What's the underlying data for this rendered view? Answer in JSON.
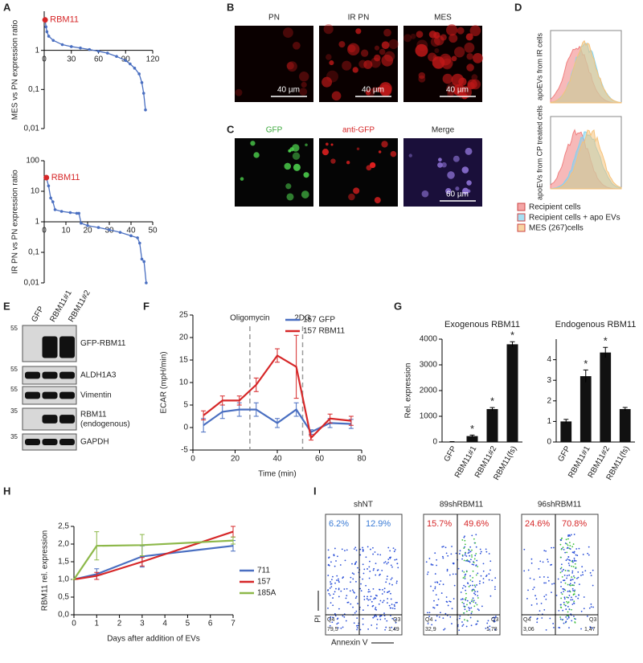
{
  "panel_labels": [
    "A",
    "B",
    "C",
    "D",
    "E",
    "F",
    "G",
    "H",
    "I"
  ],
  "chart_data": [
    {
      "type": "line",
      "ylabel": "MES vs PN expression ratio",
      "ylog": true,
      "markers": true,
      "x_axis_at": 1,
      "x": [
        1,
        2,
        3,
        5,
        10,
        20,
        30,
        40,
        50,
        60,
        70,
        80,
        90,
        95,
        100,
        105,
        108,
        110,
        112
      ],
      "series": [
        {
          "color": "#4a6fc1",
          "values": [
            6,
            4,
            3,
            2.3,
            1.8,
            1.4,
            1.25,
            1.15,
            1.05,
            0.95,
            0.85,
            0.7,
            0.55,
            0.45,
            0.35,
            0.25,
            0.15,
            0.08,
            0.03
          ]
        }
      ],
      "annotations": [
        {
          "text": "RBM11",
          "x": 1,
          "y": 6,
          "color": "#d62728"
        }
      ],
      "xlim": [
        0,
        120
      ],
      "xticks": [
        0,
        30,
        60,
        90,
        120
      ],
      "ylim": [
        0.01,
        10
      ],
      "yticks": [
        {
          "value": 0.01,
          "label": "0,01"
        },
        {
          "value": 0.1,
          "label": "0,1"
        },
        1
      ]
    },
    {
      "type": "line",
      "ylabel": "IR PN vs PN expression ratio",
      "ylog": true,
      "markers": true,
      "x_axis_at": 1,
      "x": [
        1,
        2,
        3,
        4,
        5,
        8,
        12,
        15,
        16,
        17,
        20,
        25,
        30,
        35,
        40,
        43,
        44,
        45,
        46,
        47
      ],
      "series": [
        {
          "color": "#4a6fc1",
          "values": [
            28,
            15,
            6,
            4.5,
            2.5,
            2.2,
            2,
            1.9,
            1.9,
            0.9,
            0.75,
            0.65,
            0.55,
            0.45,
            0.35,
            0.3,
            0.2,
            0.06,
            0.05,
            0.01
          ]
        }
      ],
      "annotations": [
        {
          "text": "RBM11",
          "x": 1,
          "y": 28,
          "color": "#d62728"
        }
      ],
      "xlim": [
        0,
        50
      ],
      "xticks": [
        0,
        10,
        20,
        30,
        40,
        50
      ],
      "ylim": [
        0.01,
        100
      ],
      "yticks": [
        {
          "value": 0.01,
          "label": "0,01"
        },
        {
          "value": 0.1,
          "label": "0,1"
        },
        1,
        10,
        100
      ]
    },
    {
      "type": "line",
      "ylabel": "ECAR (mpH/min)",
      "xlabel": "Time (min)",
      "legend": "upper right",
      "x": [
        5,
        14,
        22,
        30,
        40,
        49,
        56,
        65,
        75
      ],
      "series": [
        {
          "name": "157 GFP",
          "color": "#4a6fc1",
          "values": [
            0.5,
            3.5,
            4,
            4,
            1,
            4,
            -1,
            1,
            0.8
          ],
          "errors": [
            1.5,
            1.5,
            1.5,
            1.5,
            1,
            1.5,
            0.5,
            1,
            1
          ]
        },
        {
          "name": "157 RBM11",
          "color": "#d62728",
          "values": [
            2.7,
            6,
            6,
            9.5,
            16,
            13.5,
            -2.3,
            2,
            1.5
          ],
          "errors": [
            1,
            1,
            1,
            1.5,
            1.5,
            7,
            0.5,
            1,
            1
          ]
        }
      ],
      "vlines": [
        {
          "x": 27,
          "label": "Oligomycin"
        },
        {
          "x": 52,
          "label": "2DG"
        }
      ],
      "xlim": [
        0,
        80
      ],
      "xticks": [
        0,
        20,
        40,
        60,
        80
      ],
      "ylim": [
        -5,
        25
      ],
      "yticks": [
        -5,
        0,
        5,
        10,
        15,
        20,
        25
      ]
    },
    {
      "type": "bar",
      "title": "Exogenous RBM11",
      "ylabel": "Rel. expression",
      "color": "#111",
      "categories": [
        "GFP",
        "RBM11#1",
        "RBM11#2",
        "RBM11(fs)"
      ],
      "values": [
        5,
        230,
        1280,
        3800
      ],
      "errors": [
        10,
        40,
        60,
        100
      ],
      "significance": [
        null,
        "*",
        "*",
        "*"
      ],
      "ylim": [
        0,
        4000
      ],
      "yticks": [
        0,
        1000,
        2000,
        3000,
        4000
      ]
    },
    {
      "type": "bar",
      "title": "Endogenous RBM11",
      "color": "#111",
      "categories": [
        "GFP",
        "RBM11#1",
        "RBM11#2",
        "RBM11(fs)"
      ],
      "values": [
        1,
        3.2,
        4.35,
        1.6
      ],
      "errors": [
        0.1,
        0.3,
        0.25,
        0.08
      ],
      "significance": [
        null,
        "*",
        "*",
        null
      ],
      "ylim": [
        0,
        5
      ],
      "yticks": [
        0,
        1,
        2,
        3,
        4
      ]
    },
    {
      "type": "line",
      "ylabel": "RBM11 rel. expression",
      "xlabel": "Days after addition of EVs",
      "legend": "right",
      "x": [
        0,
        1,
        3,
        7
      ],
      "series": [
        {
          "name": "711",
          "color": "#4a6fc1",
          "values": [
            1,
            1.15,
            1.65,
            1.95
          ],
          "errors": [
            0,
            0.15,
            0.3,
            0.15
          ]
        },
        {
          "name": "157",
          "color": "#d62728",
          "values": [
            1,
            1.1,
            1.5,
            2.35
          ],
          "errors": [
            0,
            0.1,
            0.12,
            0.15
          ]
        },
        {
          "name": "185A",
          "color": "#8db84a",
          "values": [
            1,
            1.95,
            1.97,
            2.1
          ],
          "errors": [
            0,
            0.4,
            0.3,
            0.1
          ]
        }
      ],
      "xlim": [
        0,
        7
      ],
      "xticks": [
        0,
        1,
        2,
        3,
        4,
        5,
        6,
        7
      ],
      "ylim": [
        0,
        2.5
      ],
      "yticks": [
        {
          "value": 0,
          "label": "0,0"
        },
        {
          "value": 0.5,
          "label": "0,5"
        },
        {
          "value": 1,
          "label": "1,0"
        },
        {
          "value": 1.5,
          "label": "1,5"
        },
        {
          "value": 2,
          "label": "2,0"
        },
        {
          "value": 2.5,
          "label": "2,5"
        }
      ]
    }
  ],
  "panel_b": {
    "columns": [
      "PN",
      "IR PN",
      "MES"
    ],
    "scale_bars": [
      "40 µm",
      "40 µm",
      "40 µm"
    ]
  },
  "panel_c": {
    "columns": [
      "GFP",
      "anti-GFP",
      "Merge"
    ],
    "column_colors": [
      "#3aa83a",
      "#d62728",
      "#222"
    ],
    "scale_bar": "60 µm"
  },
  "panel_d": {
    "y_labels": [
      "apoEVs from IR cells",
      "apoEVs from CP treated cells"
    ],
    "legend": [
      {
        "label": "Recipient cells",
        "color": "#f08080"
      },
      {
        "label": "Recipient cells + apo EVs",
        "color": "#7fd3f0"
      },
      {
        "label": "MES (267)cells",
        "color": "#f5c27a"
      }
    ]
  },
  "panel_e": {
    "lanes": [
      "GFP",
      "RBM11#1",
      "RBM11#2"
    ],
    "bands": [
      {
        "label": "GFP-RBM11",
        "marker": "55"
      },
      {
        "label": "ALDH1A3",
        "marker": "55"
      },
      {
        "label": "Vimentin",
        "marker": "55"
      },
      {
        "label": "RBM11",
        "sublabel": "(endogenous)",
        "marker": "35"
      },
      {
        "label": "GAPDH",
        "marker": "35"
      }
    ]
  },
  "panel_i": {
    "y_label": "PI",
    "x_label": "Annexin V",
    "quadrant_labels": [
      "Q4",
      "Q3"
    ],
    "plots": [
      {
        "title": "shNT",
        "upper_left": "6.2%",
        "upper_right": "12.9%",
        "lower_left": "79,5",
        "lower_right": "1,49",
        "color": "#3a7bd5"
      },
      {
        "title": "89shRBM11",
        "upper_left": "15.7%",
        "upper_right": "49.6%",
        "lower_left": "32,9",
        "lower_right": "1,78",
        "color": "#d62728"
      },
      {
        "title": "96shRBM11",
        "upper_left": "24.6%",
        "upper_right": "70.8%",
        "lower_left": "3,06",
        "lower_right": "1,47",
        "color": "#d62728"
      }
    ]
  }
}
